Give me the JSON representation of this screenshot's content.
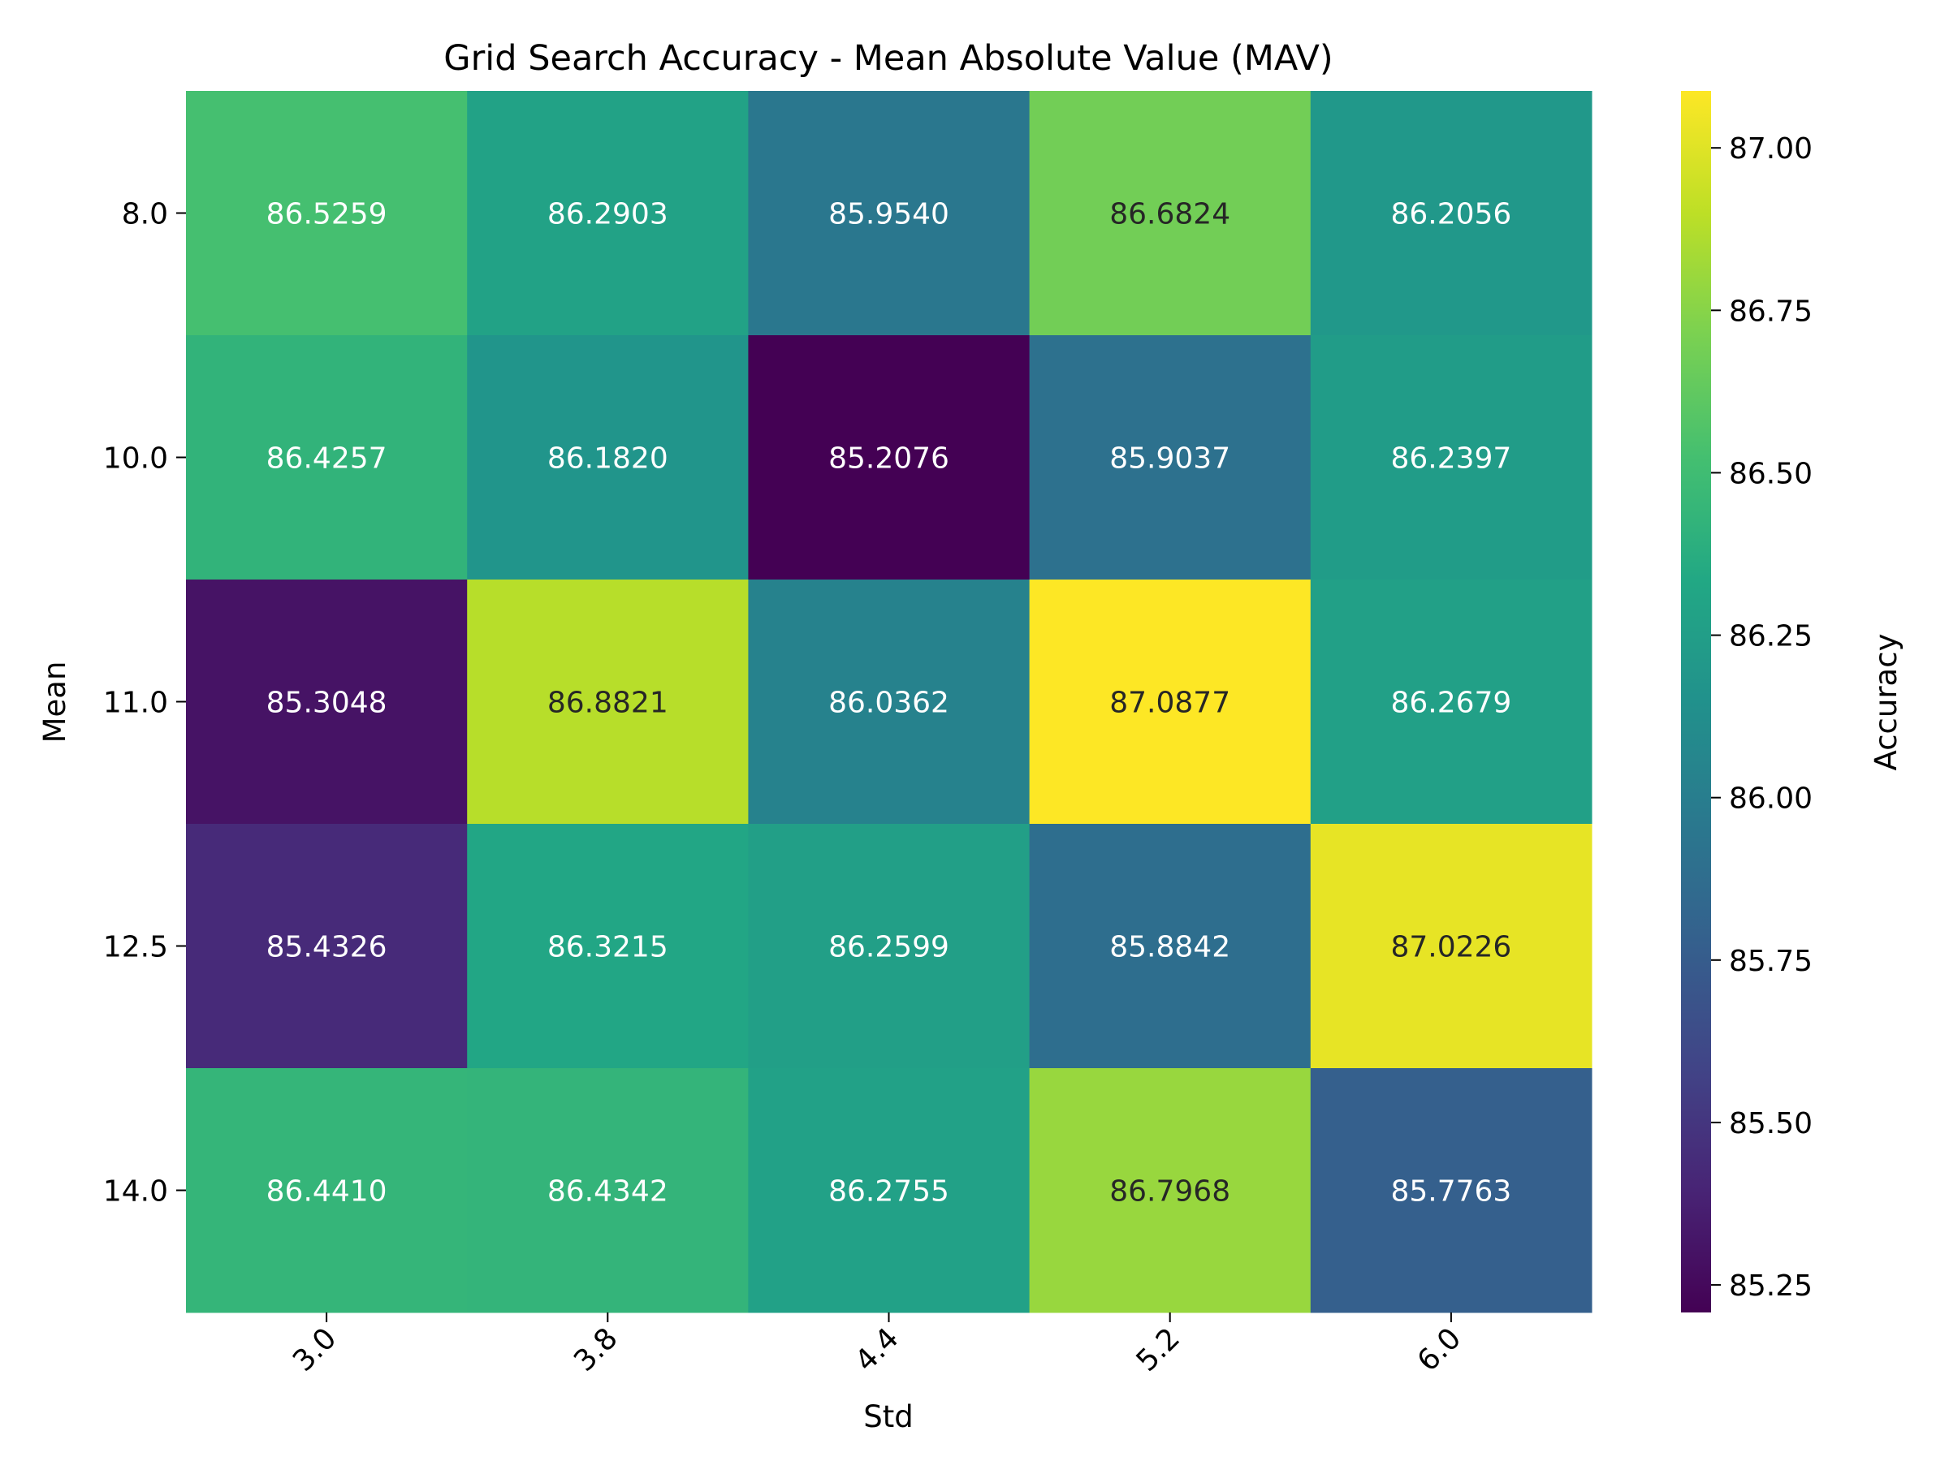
{
  "chart_data": {
    "type": "heatmap",
    "title": "Grid Search Accuracy - Mean Absolute Value (MAV)",
    "xlabel": "Std",
    "ylabel": "Mean",
    "x_categories": [
      "3.0",
      "3.8",
      "4.4",
      "5.2",
      "6.0"
    ],
    "y_categories": [
      "8.0",
      "10.0",
      "11.0",
      "12.5",
      "14.0"
    ],
    "values": [
      [
        86.5259,
        86.2903,
        85.954,
        86.6824,
        86.2056
      ],
      [
        86.4257,
        86.182,
        85.2076,
        85.9037,
        86.2397
      ],
      [
        85.3048,
        86.8821,
        86.0362,
        87.0877,
        86.2679
      ],
      [
        85.4326,
        86.3215,
        86.2599,
        85.8842,
        87.0226
      ],
      [
        86.441,
        86.4342,
        86.2755,
        86.7968,
        85.7763
      ]
    ],
    "value_format_decimals": 4,
    "colormap": "viridis",
    "colorbar": {
      "label": "Accuracy",
      "range": [
        85.2076,
        87.0877
      ],
      "ticks": [
        "85.25",
        "85.50",
        "85.75",
        "86.00",
        "86.25",
        "86.50",
        "86.75",
        "87.00"
      ]
    },
    "grid": false,
    "legend": "colorbar-right"
  }
}
